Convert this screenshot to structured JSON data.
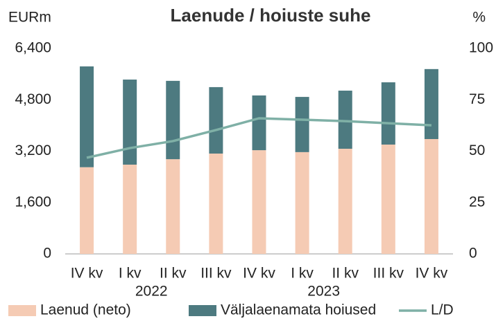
{
  "chart_data": {
    "type": "bar",
    "stacked": true,
    "title": "Laenude / hoiuste suhe",
    "y_label": "EURm",
    "y2_label": "%",
    "categories": [
      "IV kv",
      "I kv",
      "II kv",
      "III kv",
      "IV kv",
      "I kv",
      "II kv",
      "III kv",
      "IV kv"
    ],
    "category_years": [
      null,
      "2022",
      null,
      null,
      null,
      "2023",
      null,
      null,
      null
    ],
    "series": [
      {
        "name": "Laenud (neto)",
        "type": "bar",
        "color": "#f5cbb4",
        "values": [
          2700,
          2780,
          2950,
          3125,
          3230,
          3170,
          3275,
          3405,
          3577
        ]
      },
      {
        "name": "Väljalaenamata hoiused",
        "type": "bar",
        "color": "#4d7a80",
        "values": [
          3140,
          2650,
          2440,
          2070,
          1705,
          1720,
          1810,
          1940,
          2180
        ]
      },
      {
        "name": "L/D",
        "type": "line",
        "axis": "y2",
        "color": "#7fb0a6",
        "values": [
          46.8,
          51.5,
          54.9,
          60.3,
          66,
          65.3,
          64.6,
          63.6,
          62.6
        ]
      }
    ],
    "ylim": [
      0,
      6400
    ],
    "yticks": [
      0,
      {
        "value": 1600,
        "label": "1,600"
      },
      {
        "value": 3200,
        "label": "3,200"
      },
      {
        "value": 4800,
        "label": "4,800"
      },
      {
        "value": 6400,
        "label": "6,400"
      }
    ],
    "y2lim": [
      0,
      100
    ],
    "y2ticks": [
      0,
      25,
      50,
      75,
      100
    ],
    "grid": false,
    "legend": "bottom"
  }
}
